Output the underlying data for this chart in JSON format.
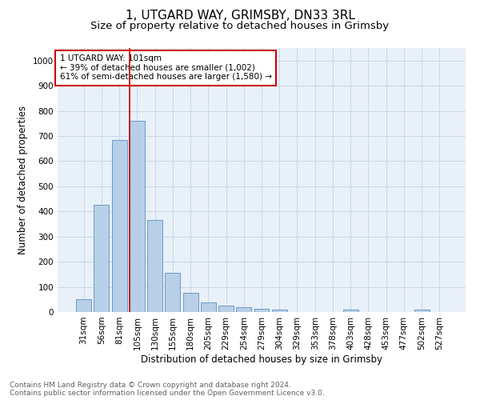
{
  "title1": "1, UTGARD WAY, GRIMSBY, DN33 3RL",
  "title2": "Size of property relative to detached houses in Grimsby",
  "xlabel": "Distribution of detached houses by size in Grimsby",
  "ylabel": "Number of detached properties",
  "categories": [
    "31sqm",
    "56sqm",
    "81sqm",
    "105sqm",
    "130sqm",
    "155sqm",
    "180sqm",
    "205sqm",
    "229sqm",
    "254sqm",
    "279sqm",
    "304sqm",
    "329sqm",
    "353sqm",
    "378sqm",
    "403sqm",
    "428sqm",
    "453sqm",
    "477sqm",
    "502sqm",
    "527sqm"
  ],
  "values": [
    50,
    425,
    685,
    760,
    365,
    155,
    77,
    37,
    27,
    18,
    14,
    8,
    0,
    0,
    0,
    10,
    0,
    0,
    0,
    10,
    0
  ],
  "bar_color": "#b8cfe8",
  "bar_edge_color": "#6090c0",
  "vline_x": 3.0,
  "vline_color": "#cc0000",
  "annotation_text": "1 UTGARD WAY: 101sqm\n← 39% of detached houses are smaller (1,002)\n61% of semi-detached houses are larger (1,580) →",
  "annotation_box_color": "#ffffff",
  "annotation_box_edge": "#cc0000",
  "ylim": [
    0,
    1050
  ],
  "yticks": [
    0,
    100,
    200,
    300,
    400,
    500,
    600,
    700,
    800,
    900,
    1000
  ],
  "grid_color": "#c8d8ea",
  "bg_color": "#e8f0f8",
  "footer1": "Contains HM Land Registry data © Crown copyright and database right 2024.",
  "footer2": "Contains public sector information licensed under the Open Government Licence v3.0.",
  "title1_fontsize": 11,
  "title2_fontsize": 9.5,
  "xlabel_fontsize": 8.5,
  "ylabel_fontsize": 8.5,
  "tick_fontsize": 7.5,
  "footer_fontsize": 6.5,
  "annot_fontsize": 7.5
}
